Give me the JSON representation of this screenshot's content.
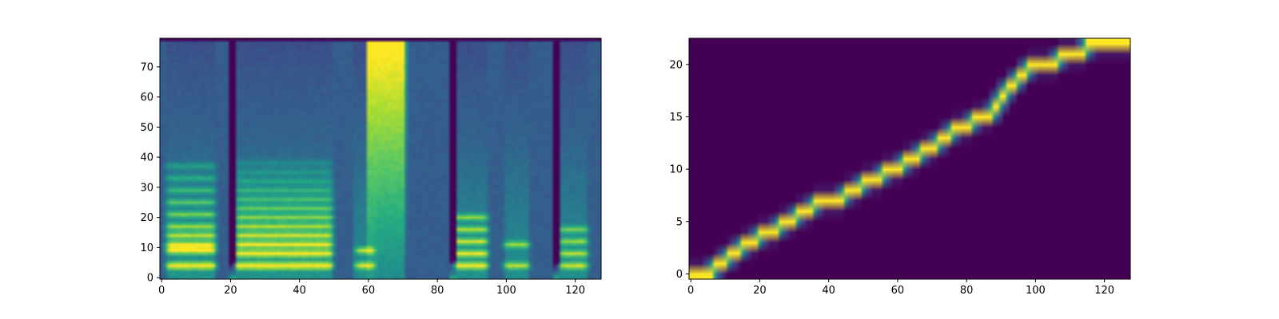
{
  "chart_data": [
    {
      "type": "heatmap",
      "kind": "mel-spectrogram",
      "colormap": "viridis",
      "xlim": [
        -0.5,
        127.5
      ],
      "ylim": [
        -0.5,
        79.5
      ],
      "xticks": [
        0,
        20,
        40,
        60,
        80,
        100,
        120
      ],
      "yticks": [
        0,
        10,
        20,
        30,
        40,
        50,
        60,
        70
      ],
      "xtick_labels": [
        "0",
        "20",
        "40",
        "60",
        "80",
        "100",
        "120"
      ],
      "ytick_labels": [
        "0",
        "10",
        "20",
        "30",
        "40",
        "50",
        "60",
        "70"
      ],
      "n_frames": 128,
      "n_bins": 80,
      "silence_frames": [
        [
          0,
          1
        ],
        [
          16,
          19
        ],
        [
          50,
          55
        ],
        [
          71,
          83
        ],
        [
          95,
          99
        ],
        [
          107,
          113
        ],
        [
          124,
          127
        ]
      ],
      "breath_frames": [
        [
          19,
          21
        ],
        [
          83,
          85
        ],
        [
          113,
          115
        ]
      ],
      "fricative_frames": [
        [
          60,
          71
        ]
      ],
      "voiced_segments": [
        {
          "frames": [
            1,
            16
          ],
          "harmonic_rows": [
            4,
            9,
            11,
            14,
            17,
            21,
            25,
            29,
            33,
            37
          ],
          "strength": 0.95
        },
        {
          "frames": [
            21,
            50
          ],
          "harmonic_rows": [
            4,
            8,
            11,
            14,
            17,
            20,
            23,
            26,
            29,
            32,
            35,
            38
          ],
          "strength": 1.0
        },
        {
          "frames": [
            56,
            62
          ],
          "harmonic_rows": [
            4,
            9
          ],
          "strength": 0.8
        },
        {
          "frames": [
            84,
            95
          ],
          "harmonic_rows": [
            4,
            8,
            12,
            16,
            20
          ],
          "strength": 0.9
        },
        {
          "frames": [
            99,
            107
          ],
          "harmonic_rows": [
            4,
            11
          ],
          "strength": 0.7
        },
        {
          "frames": [
            115,
            124
          ],
          "harmonic_rows": [
            4,
            8,
            12,
            16
          ],
          "strength": 0.75
        }
      ]
    },
    {
      "type": "heatmap",
      "kind": "attention-alignment",
      "colormap": "viridis",
      "xlim": [
        -0.5,
        127.5
      ],
      "ylim": [
        -0.5,
        22.5
      ],
      "xticks": [
        0,
        20,
        40,
        60,
        80,
        100,
        120
      ],
      "yticks": [
        0,
        5,
        10,
        15,
        20
      ],
      "xtick_labels": [
        "0",
        "20",
        "40",
        "60",
        "80",
        "100",
        "120"
      ],
      "ytick_labels": [
        "0",
        "5",
        "10",
        "15",
        "20"
      ],
      "n_frames": 128,
      "n_tokens": 23,
      "alignment": [
        {
          "token": 0,
          "start": 0,
          "end": 6
        },
        {
          "token": 1,
          "start": 7,
          "end": 10
        },
        {
          "token": 2,
          "start": 11,
          "end": 14
        },
        {
          "token": 3,
          "start": 15,
          "end": 19
        },
        {
          "token": 4,
          "start": 20,
          "end": 25
        },
        {
          "token": 5,
          "start": 26,
          "end": 30
        },
        {
          "token": 6,
          "start": 31,
          "end": 35
        },
        {
          "token": 7,
          "start": 36,
          "end": 44
        },
        {
          "token": 8,
          "start": 45,
          "end": 49
        },
        {
          "token": 9,
          "start": 50,
          "end": 55
        },
        {
          "token": 10,
          "start": 56,
          "end": 61
        },
        {
          "token": 11,
          "start": 62,
          "end": 66
        },
        {
          "token": 12,
          "start": 67,
          "end": 71
        },
        {
          "token": 13,
          "start": 72,
          "end": 75
        },
        {
          "token": 14,
          "start": 76,
          "end": 81
        },
        {
          "token": 15,
          "start": 82,
          "end": 87
        },
        {
          "token": 16,
          "start": 88,
          "end": 89
        },
        {
          "token": 17,
          "start": 90,
          "end": 91
        },
        {
          "token": 18,
          "start": 92,
          "end": 94
        },
        {
          "token": 19,
          "start": 95,
          "end": 97
        },
        {
          "token": 20,
          "start": 98,
          "end": 106
        },
        {
          "token": 21,
          "start": 107,
          "end": 114
        },
        {
          "token": 22,
          "start": 115,
          "end": 127
        }
      ]
    }
  ]
}
